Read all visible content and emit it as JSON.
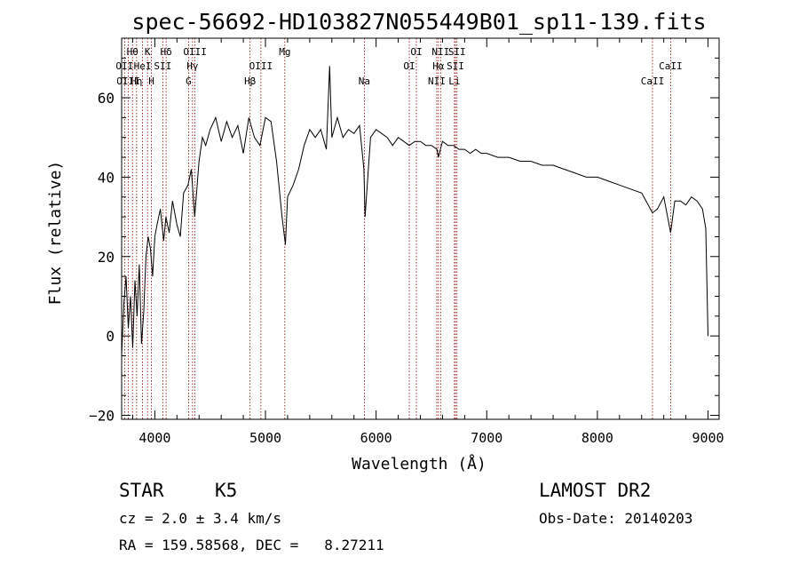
{
  "chart_data": {
    "type": "line",
    "title": "spec-56692-HD103827N055449B01_sp11-139.fits",
    "xlabel": "Wavelength (Å)",
    "ylabel": "Flux (relative)",
    "xlim": [
      3700,
      9100
    ],
    "ylim": [
      -21,
      75
    ],
    "xticks": [
      4000,
      5000,
      6000,
      7000,
      8000,
      9000
    ],
    "yticks": [
      -20,
      0,
      20,
      40,
      60
    ],
    "grid": false,
    "series": [
      {
        "x": [
          3700,
          3720,
          3740,
          3760,
          3780,
          3800,
          3820,
          3840,
          3860,
          3880,
          3900,
          3920,
          3940,
          3960,
          3980,
          4000,
          4020,
          4050,
          4080,
          4100,
          4130,
          4160,
          4200,
          4230,
          4260,
          4300,
          4330,
          4360,
          4400,
          4430,
          4460,
          4500,
          4550,
          4600,
          4650,
          4700,
          4750,
          4800,
          4850,
          4900,
          4950,
          5000,
          5050,
          5100,
          5150,
          5180,
          5200,
          5250,
          5300,
          5350,
          5400,
          5450,
          5500,
          5550,
          5580,
          5600,
          5650,
          5700,
          5750,
          5800,
          5850,
          5890,
          5900,
          5950,
          6000,
          6050,
          6100,
          6150,
          6200,
          6250,
          6300,
          6350,
          6400,
          6450,
          6500,
          6550,
          6563,
          6600,
          6650,
          6700,
          6750,
          6800,
          6850,
          6900,
          6950,
          7000,
          7100,
          7200,
          7300,
          7400,
          7500,
          7600,
          7700,
          7800,
          7900,
          8000,
          8100,
          8200,
          8300,
          8400,
          8498,
          8542,
          8600,
          8662,
          8700,
          8750,
          8800,
          8850,
          8900,
          8950,
          8980,
          9000
        ],
        "y": [
          -5,
          8,
          15,
          2,
          10,
          -3,
          14,
          5,
          18,
          -2,
          6,
          20,
          25,
          22,
          15,
          25,
          28,
          32,
          24,
          30,
          26,
          34,
          28,
          25,
          36,
          38,
          42,
          30,
          44,
          50,
          48,
          52,
          55,
          49,
          54,
          50,
          53,
          46,
          55,
          50,
          48,
          55,
          54,
          44,
          30,
          23,
          35,
          38,
          42,
          48,
          52,
          50,
          52,
          47,
          68,
          50,
          55,
          50,
          52,
          51,
          53,
          42,
          30,
          50,
          52,
          51,
          50,
          48,
          50,
          49,
          48,
          49,
          49,
          48,
          48,
          47,
          45,
          49,
          48,
          48,
          47,
          47,
          46,
          47,
          46,
          46,
          45,
          45,
          44,
          44,
          43,
          43,
          42,
          41,
          40,
          40,
          39,
          38,
          37,
          36,
          31,
          32,
          35,
          26,
          34,
          34,
          33,
          35,
          34,
          32,
          27,
          0
        ]
      }
    ],
    "lines": [
      {
        "label": "Hθ",
        "x": 3798,
        "row": 0
      },
      {
        "label": "OII",
        "x": 3727,
        "row": 1
      },
      {
        "label": "OIII",
        "x": 3760,
        "row": 2
      },
      {
        "label": "Hη",
        "x": 3835,
        "row": 2
      },
      {
        "label": "HeI",
        "x": 3889,
        "row": 1
      },
      {
        "label": "K",
        "x": 3934,
        "row": 0
      },
      {
        "label": "H",
        "x": 3969,
        "row": 2
      },
      {
        "label": "SII",
        "x": 4072,
        "row": 1
      },
      {
        "label": "Hδ",
        "x": 4102,
        "row": 0
      },
      {
        "label": "G",
        "x": 4305,
        "row": 2
      },
      {
        "label": "Hγ",
        "x": 4341,
        "row": 1
      },
      {
        "label": "OIII",
        "x": 4363,
        "row": 0
      },
      {
        "label": "Hβ",
        "x": 4861,
        "row": 2
      },
      {
        "label": "OIII",
        "x": 4959,
        "row": 1
      },
      {
        "label": "Mg",
        "x": 5175,
        "row": 0
      },
      {
        "label": "Na",
        "x": 5894,
        "row": 2
      },
      {
        "label": "OI",
        "x": 6300,
        "row": 1
      },
      {
        "label": "OI",
        "x": 6364,
        "row": 0
      },
      {
        "label": "NII",
        "x": 6548,
        "row": 2
      },
      {
        "label": "NII",
        "x": 6583,
        "row": 0
      },
      {
        "label": "Hα",
        "x": 6563,
        "row": 1
      },
      {
        "label": "Li",
        "x": 6708,
        "row": 2
      },
      {
        "label": "SII",
        "x": 6717,
        "row": 1
      },
      {
        "label": "SII",
        "x": 6731,
        "row": 0
      },
      {
        "label": "CaII",
        "x": 8498,
        "row": 2
      },
      {
        "label": "CaII",
        "x": 8662,
        "row": 1
      }
    ]
  },
  "info": {
    "class_label": "STAR",
    "subclass": "K5",
    "survey": "LAMOST DR2",
    "cz": "cz = 2.0 ± 3.4 km/s",
    "obs_date": "Obs-Date: 20140203",
    "radec": "RA = 159.58568, DEC =   8.27211"
  }
}
